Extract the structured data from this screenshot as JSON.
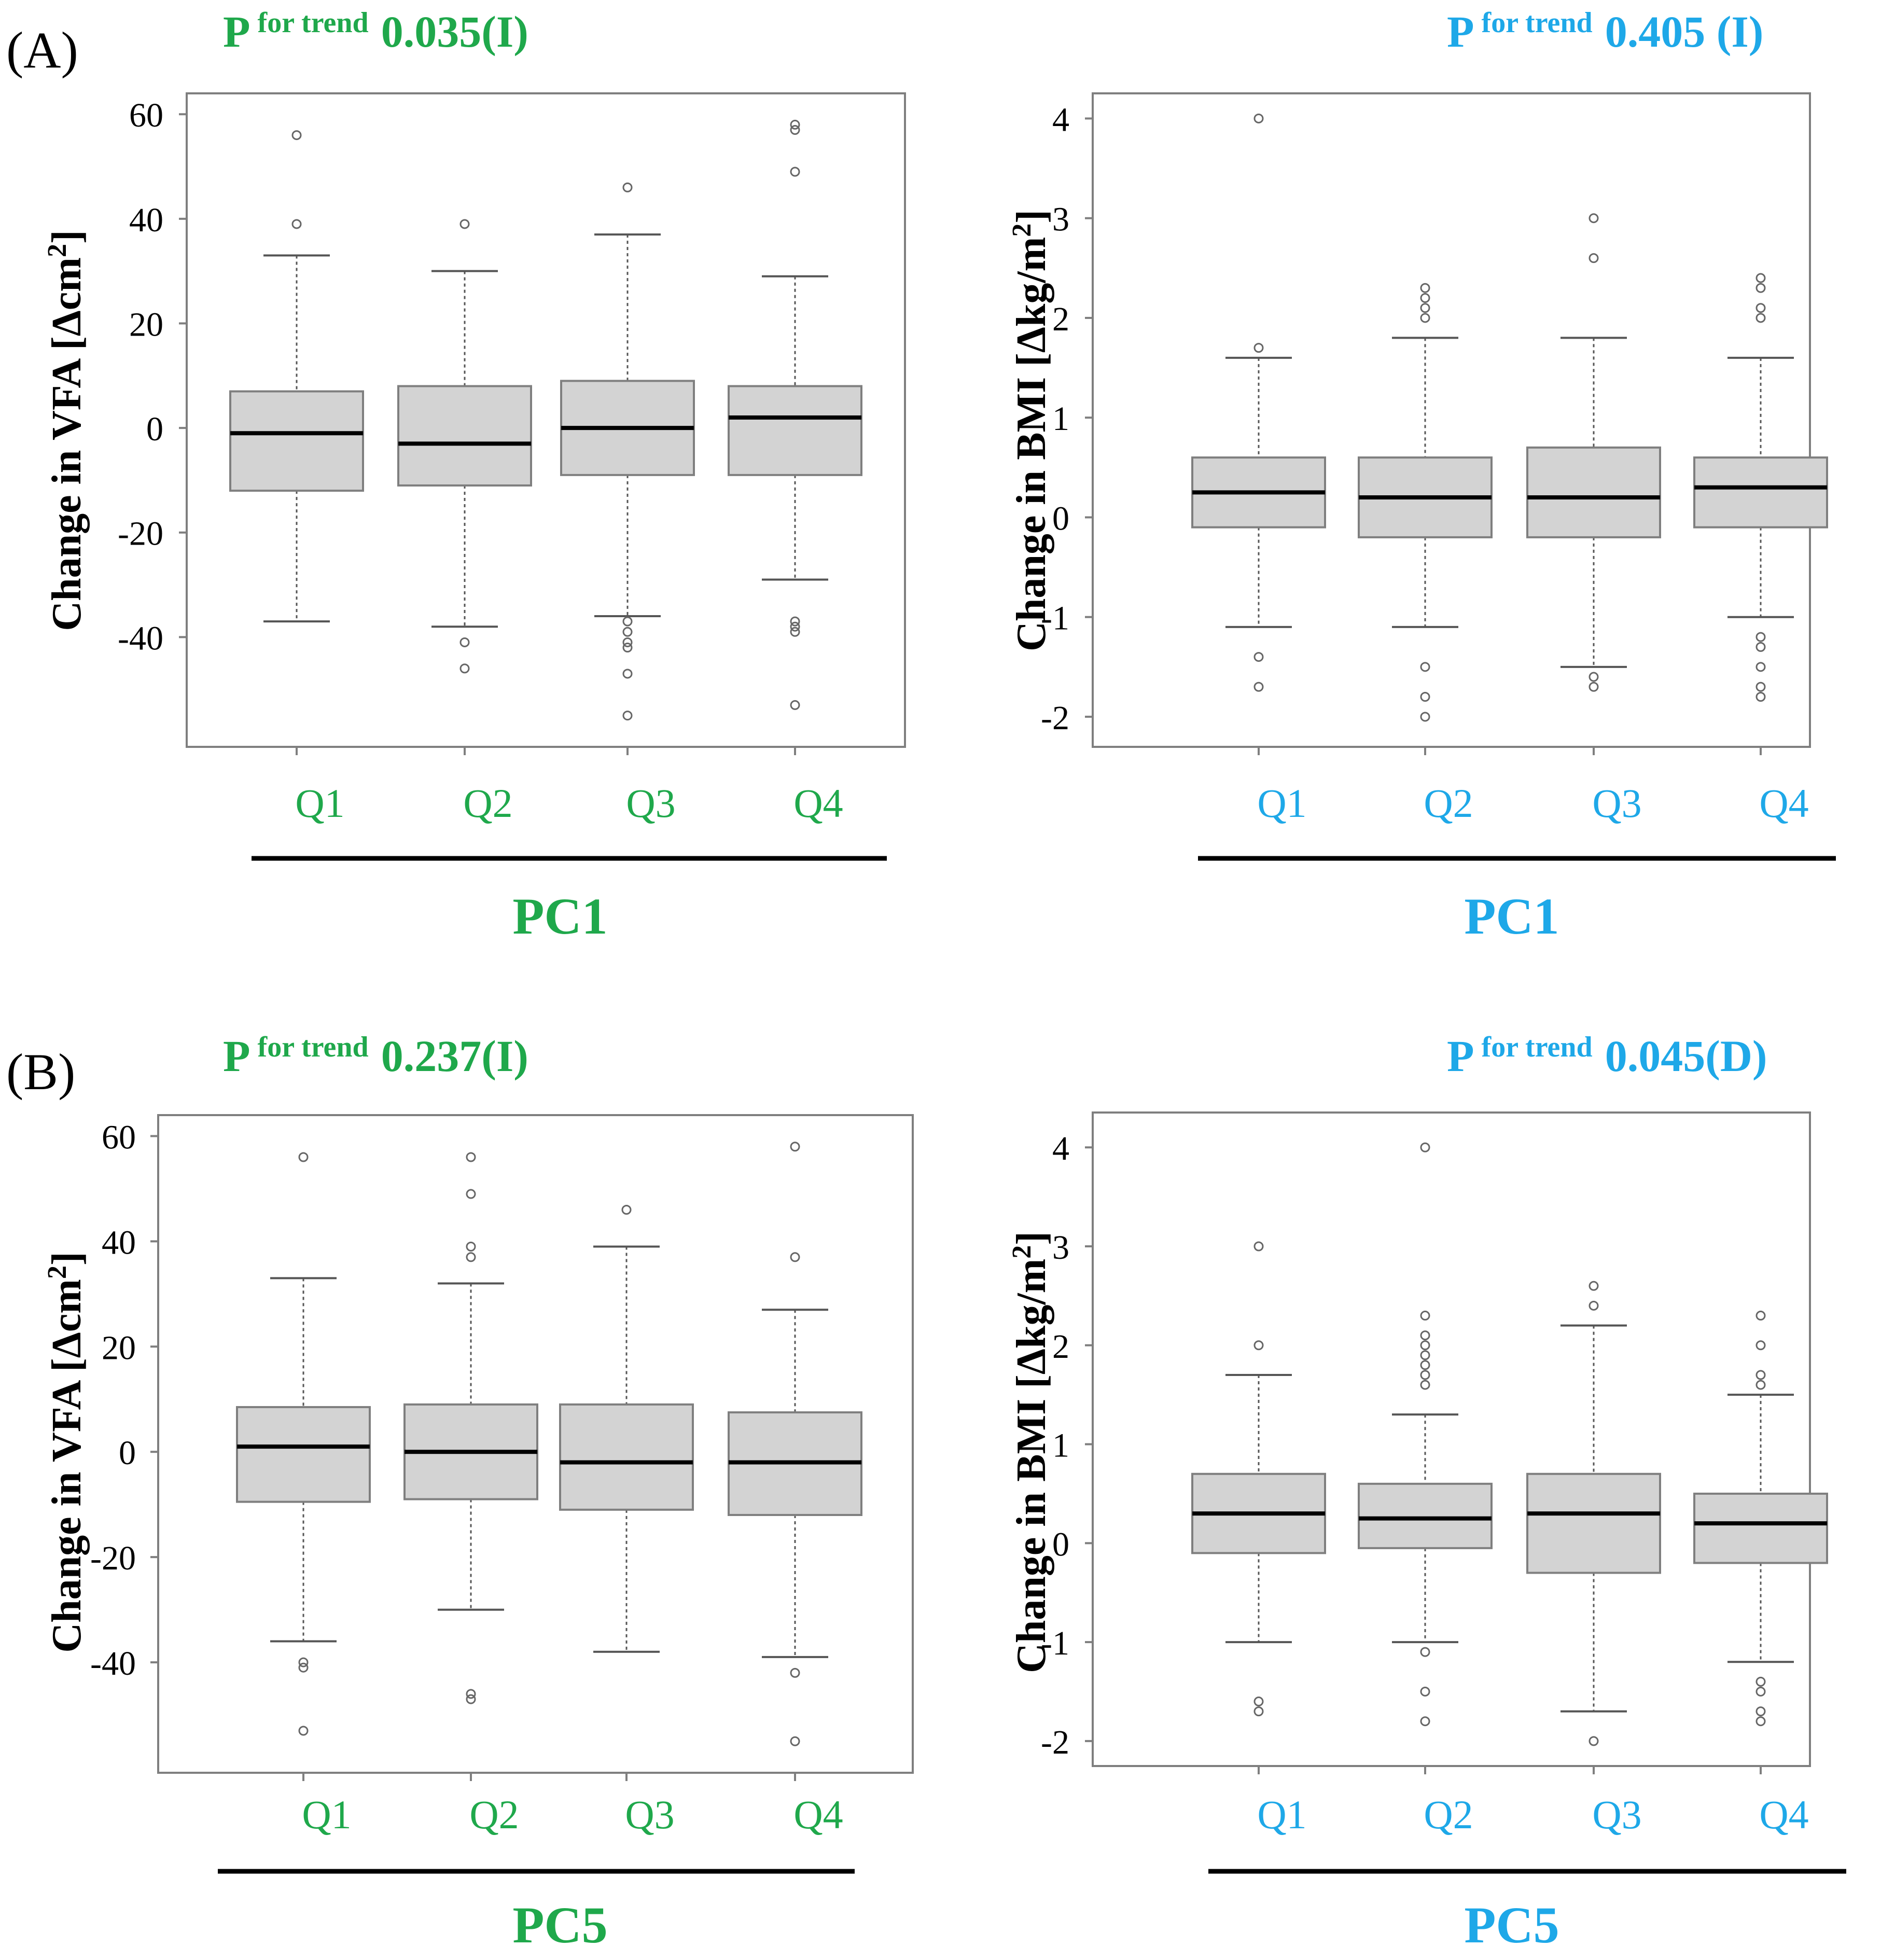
{
  "colors": {
    "green": "#1fa84b",
    "blue": "#1ea8e8",
    "box_fill": "#d3d3d3",
    "box_stroke": "#7f7f7f",
    "frame": "#7f7f7f",
    "black": "#000000"
  },
  "chart_data": [
    {
      "type": "box",
      "panel_label": "(A)",
      "p_prefix": "P",
      "p_super": "for trend",
      "p_value": "0.035(I)",
      "ylabel_main": "Change in VFA [Δcm",
      "ylabel_sup": "2",
      "ylabel_end": "]",
      "group_label": "PC1",
      "color": "green",
      "ylim": [
        -60,
        63
      ],
      "yticks": [
        -40,
        -20,
        0,
        20,
        40,
        60
      ],
      "ytick_labels": [
        "-40",
        "-20",
        "0",
        "20",
        "40",
        "60"
      ],
      "categories": [
        "Q1",
        "Q2",
        "Q3",
        "Q4"
      ],
      "boxes": [
        {
          "low": -37,
          "q1": -12,
          "median": -1,
          "q3": 7,
          "high": 33,
          "outliers": [
            56,
            39
          ]
        },
        {
          "low": -38,
          "q1": -11,
          "median": -3,
          "q3": 8,
          "high": 30,
          "outliers": [
            39,
            -41,
            -46
          ]
        },
        {
          "low": -36,
          "q1": -9,
          "median": 0,
          "q3": 9,
          "high": 37,
          "outliers": [
            46,
            -37,
            -39,
            -41,
            -42,
            -47,
            -55
          ]
        },
        {
          "low": -29,
          "q1": -9,
          "median": 2,
          "q3": 8,
          "high": 29,
          "outliers": [
            58,
            57,
            49,
            -37,
            -38,
            -39,
            -53
          ]
        }
      ]
    },
    {
      "type": "box",
      "panel_label": "",
      "p_prefix": "P",
      "p_super": "for trend",
      "p_value": "0.405 (I)",
      "ylabel_main": "Change in BMI [Δkg/m",
      "ylabel_sup": "2",
      "ylabel_end": "]",
      "group_label": "PC1",
      "color": "blue",
      "ylim": [
        -2.25,
        4.2
      ],
      "yticks": [
        -2,
        -1,
        0,
        1,
        2,
        3,
        4
      ],
      "ytick_labels": [
        "-2",
        "-1",
        "0",
        "1",
        "2",
        "3",
        "4"
      ],
      "categories": [
        "Q1",
        "Q2",
        "Q3",
        "Q4"
      ],
      "boxes": [
        {
          "low": -1.1,
          "q1": -0.1,
          "median": 0.25,
          "q3": 0.6,
          "high": 1.6,
          "outliers": [
            4.0,
            1.7,
            -1.4,
            -1.7
          ]
        },
        {
          "low": -1.1,
          "q1": -0.2,
          "median": 0.2,
          "q3": 0.6,
          "high": 1.8,
          "outliers": [
            2.3,
            2.2,
            2.1,
            2.0,
            -1.5,
            -1.8,
            -2.0
          ]
        },
        {
          "low": -1.5,
          "q1": -0.2,
          "median": 0.2,
          "q3": 0.7,
          "high": 1.8,
          "outliers": [
            3.0,
            2.6,
            -1.6,
            -1.7
          ]
        },
        {
          "low": -1.0,
          "q1": -0.1,
          "median": 0.3,
          "q3": 0.6,
          "high": 1.6,
          "outliers": [
            2.4,
            2.3,
            2.1,
            2.0,
            -1.2,
            -1.3,
            -1.5,
            -1.7,
            -1.8
          ]
        }
      ]
    },
    {
      "type": "box",
      "panel_label": "(B)",
      "p_prefix": "P",
      "p_super": "for trend",
      "p_value": "0.237(I)",
      "ylabel_main": "Change in VFA [Δcm",
      "ylabel_sup": "2",
      "ylabel_end": "]",
      "group_label": "PC5",
      "color": "green",
      "ylim": [
        -60,
        63
      ],
      "yticks": [
        -40,
        -20,
        0,
        20,
        40,
        60
      ],
      "ytick_labels": [
        "-40",
        "-20",
        "0",
        "20",
        "40",
        "60"
      ],
      "categories": [
        "Q1",
        "Q2",
        "Q3",
        "Q4"
      ],
      "boxes": [
        {
          "low": -36,
          "q1": -9.5,
          "median": 1,
          "q3": 8.5,
          "high": 33,
          "outliers": [
            56,
            -40,
            -41,
            -53
          ]
        },
        {
          "low": -30,
          "q1": -9,
          "median": 0,
          "q3": 9,
          "high": 32,
          "outliers": [
            56,
            49,
            39,
            37,
            -46,
            -47
          ]
        },
        {
          "low": -38,
          "q1": -11,
          "median": -2,
          "q3": 9,
          "high": 39,
          "outliers": [
            46
          ]
        },
        {
          "low": -39,
          "q1": -12,
          "median": -2,
          "q3": 7.5,
          "high": 27,
          "outliers": [
            58,
            37,
            -42,
            -55
          ]
        }
      ]
    },
    {
      "type": "box",
      "panel_label": "",
      "p_prefix": "P",
      "p_super": "for trend",
      "p_value": "0.045(D)",
      "ylabel_main": "Change in BMI [Δkg/m",
      "ylabel_sup": "2",
      "ylabel_end": "]",
      "group_label": "PC5",
      "color": "blue",
      "ylim": [
        -2.2,
        4.3
      ],
      "yticks": [
        -2,
        -1,
        0,
        1,
        2,
        3,
        4
      ],
      "ytick_labels": [
        "-2",
        "-1",
        "0",
        "1",
        "2",
        "3",
        "4"
      ],
      "categories": [
        "Q1",
        "Q2",
        "Q3",
        "Q4"
      ],
      "boxes": [
        {
          "low": -1.0,
          "q1": -0.1,
          "median": 0.3,
          "q3": 0.7,
          "high": 1.7,
          "outliers": [
            3.0,
            2.0,
            -1.6,
            -1.7
          ]
        },
        {
          "low": -1.0,
          "q1": -0.05,
          "median": 0.25,
          "q3": 0.6,
          "high": 1.3,
          "outliers": [
            4.0,
            2.3,
            2.1,
            2.0,
            1.9,
            1.8,
            1.7,
            1.6,
            -1.1,
            -1.5,
            -1.8
          ]
        },
        {
          "low": -1.7,
          "q1": -0.3,
          "median": 0.3,
          "q3": 0.7,
          "high": 2.2,
          "outliers": [
            2.6,
            2.4,
            -2.0
          ]
        },
        {
          "low": -1.2,
          "q1": -0.2,
          "median": 0.2,
          "q3": 0.5,
          "high": 1.5,
          "outliers": [
            2.3,
            2.0,
            1.7,
            1.6,
            -1.4,
            -1.5,
            -1.7,
            -1.8
          ]
        }
      ]
    }
  ]
}
